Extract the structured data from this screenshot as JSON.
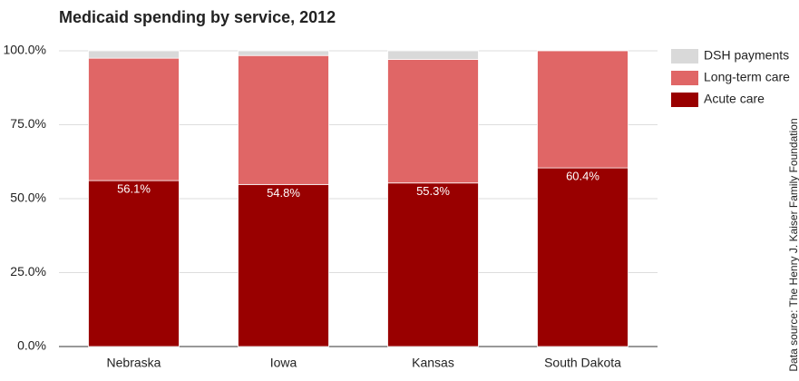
{
  "chart_data": {
    "type": "stacked_bar",
    "title": "Medicaid spending by service, 2012",
    "source": "Data source: The Henry J. Kaiser Family Foundation",
    "categories": [
      "Nebraska",
      "Iowa",
      "Kansas",
      "South Dakota"
    ],
    "series": [
      {
        "name": "DSH payments",
        "color": "#d9d9d9",
        "values": [
          2.5,
          1.6,
          2.9,
          0
        ]
      },
      {
        "name": "Long-term care",
        "color": "#e06666",
        "values": [
          41.4,
          43.6,
          41.8,
          39.6
        ]
      },
      {
        "name": "Acute care",
        "color": "#990000",
        "values": [
          56.1,
          54.8,
          55.3,
          60.4
        ],
        "value_labels": [
          "56.1%",
          "54.8%",
          "55.3%",
          "60.4%"
        ]
      }
    ],
    "ylim": [
      0,
      100
    ],
    "yticks": [
      {
        "value": 0,
        "label": "0.0%"
      },
      {
        "value": 25,
        "label": "25.0%"
      },
      {
        "value": 50,
        "label": "50.0%"
      },
      {
        "value": 75,
        "label": "75.0%"
      },
      {
        "value": 100,
        "label": "100.0%"
      }
    ],
    "grid": true,
    "legend": "right"
  }
}
